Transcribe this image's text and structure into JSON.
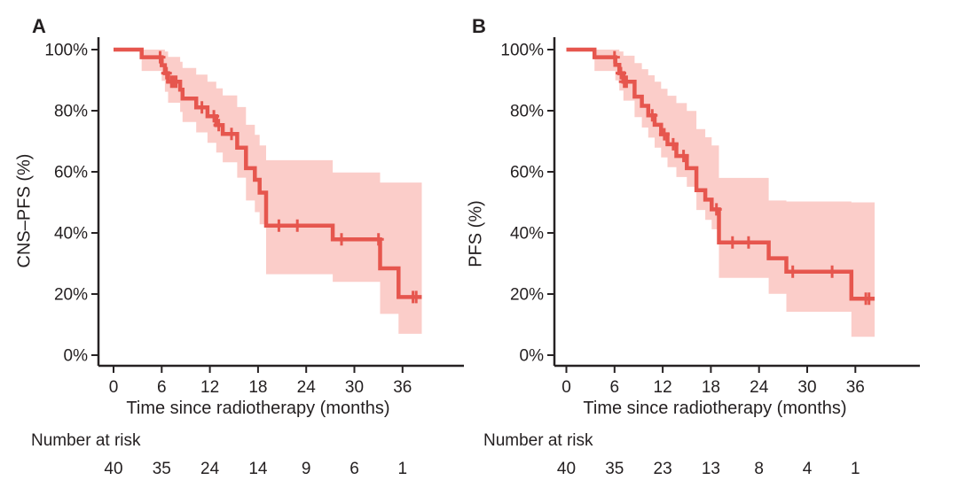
{
  "figure": {
    "background": "#ffffff",
    "curve_color": "#e6564e",
    "band_color": "#fbcdc9",
    "axis_color": "#262223",
    "text_color": "#231f20"
  },
  "chart_data": [
    {
      "type": "line",
      "subtype": "kaplan-meier-step",
      "panel": "A",
      "ylabel": "CNS–PFS (%)",
      "xlabel": "Time since radiotherapy (months)",
      "risk_label": "Number at risk",
      "xlim": [
        0,
        40
      ],
      "ylim": [
        0,
        100
      ],
      "grid": false,
      "legend": "none",
      "x_ticks": [
        0,
        6,
        12,
        18,
        24,
        30,
        36
      ],
      "y_tick_pcts": [
        0,
        20,
        40,
        60,
        80,
        100
      ],
      "y_tick_labels": [
        "0%",
        "20%",
        "40%",
        "60%",
        "80%",
        "100%"
      ],
      "steps": [
        [
          0,
          100
        ],
        [
          3.5,
          97.5
        ],
        [
          6.0,
          94.9
        ],
        [
          6.4,
          92.3
        ],
        [
          6.8,
          89.5
        ],
        [
          8.3,
          86.9
        ],
        [
          8.6,
          84.0
        ],
        [
          10.3,
          81.1
        ],
        [
          11.7,
          78.2
        ],
        [
          12.8,
          75.3
        ],
        [
          13.6,
          72.4
        ],
        [
          15.4,
          67.9
        ],
        [
          16.5,
          61.2
        ],
        [
          17.6,
          57.4
        ],
        [
          18.2,
          53.2
        ],
        [
          19.0,
          42.4
        ],
        [
          27.3,
          37.9
        ],
        [
          33.2,
          28.4
        ],
        [
          35.5,
          19.0
        ]
      ],
      "end_time": 38.4,
      "censors": [
        [
          5.8,
          97.5
        ],
        [
          6.6,
          92.3
        ],
        [
          7.2,
          89.5
        ],
        [
          7.5,
          89.5
        ],
        [
          7.8,
          89.5
        ],
        [
          11.0,
          81.1
        ],
        [
          12.5,
          78.2
        ],
        [
          13.1,
          75.3
        ],
        [
          14.7,
          72.4
        ],
        [
          20.6,
          42.4
        ],
        [
          22.9,
          42.4
        ],
        [
          28.4,
          37.9
        ],
        [
          33.0,
          37.9
        ],
        [
          37.3,
          19.0
        ],
        [
          37.7,
          19.0
        ]
      ],
      "band": [
        [
          0,
          100,
          100
        ],
        [
          3.5,
          100,
          93.0
        ],
        [
          6.0,
          100,
          89.8
        ],
        [
          6.4,
          99.4,
          86.2
        ],
        [
          6.8,
          97.6,
          82.6
        ],
        [
          8.3,
          96.0,
          79.6
        ],
        [
          8.6,
          94.0,
          76.3
        ],
        [
          10.3,
          91.8,
          72.9
        ],
        [
          11.7,
          89.5,
          69.5
        ],
        [
          12.8,
          87.3,
          66.3
        ],
        [
          13.6,
          85.0,
          63.1
        ],
        [
          15.4,
          81.2,
          58.1
        ],
        [
          16.5,
          75.4,
          50.6
        ],
        [
          17.6,
          72.1,
          46.8
        ],
        [
          18.2,
          68.6,
          42.8
        ],
        [
          19.0,
          63.8,
          26.5
        ],
        [
          27.3,
          59.8,
          24.0
        ],
        [
          33.2,
          56.5,
          13.5
        ],
        [
          35.5,
          56.5,
          7.0
        ]
      ],
      "number_at_risk": {
        "times": [
          0,
          6,
          12,
          18,
          24,
          30,
          36
        ],
        "counts": [
          40,
          35,
          24,
          14,
          9,
          6,
          1
        ]
      }
    },
    {
      "type": "line",
      "subtype": "kaplan-meier-step",
      "panel": "B",
      "ylabel": "PFS (%)",
      "xlabel": "Time since radiotherapy (months)",
      "risk_label": "Number at risk",
      "xlim": [
        0,
        40
      ],
      "ylim": [
        0,
        100
      ],
      "grid": false,
      "legend": "none",
      "x_ticks": [
        0,
        6,
        12,
        18,
        24,
        30,
        36
      ],
      "y_tick_pcts": [
        0,
        20,
        40,
        60,
        80,
        100
      ],
      "y_tick_labels": [
        "0%",
        "20%",
        "40%",
        "60%",
        "80%",
        "100%"
      ],
      "steps": [
        [
          0,
          100
        ],
        [
          3.5,
          97.5
        ],
        [
          6.1,
          95.0
        ],
        [
          6.6,
          92.3
        ],
        [
          7.1,
          89.5
        ],
        [
          8.5,
          84.6
        ],
        [
          9.4,
          81.6
        ],
        [
          10.2,
          78.5
        ],
        [
          11.0,
          75.4
        ],
        [
          11.8,
          72.3
        ],
        [
          12.6,
          69.0
        ],
        [
          13.7,
          65.2
        ],
        [
          15.0,
          61.2
        ],
        [
          16.2,
          54.0
        ],
        [
          17.3,
          50.9
        ],
        [
          18.1,
          47.7
        ],
        [
          19.0,
          36.9
        ],
        [
          25.2,
          31.7
        ],
        [
          27.4,
          27.3
        ],
        [
          35.5,
          18.5
        ]
      ],
      "end_time": 38.4,
      "censors": [
        [
          6.0,
          97.5
        ],
        [
          6.8,
          92.3
        ],
        [
          7.2,
          89.5
        ],
        [
          7.5,
          89.5
        ],
        [
          10.7,
          78.5
        ],
        [
          12.2,
          72.3
        ],
        [
          13.3,
          69.0
        ],
        [
          14.6,
          65.2
        ],
        [
          18.7,
          47.7
        ],
        [
          20.7,
          36.9
        ],
        [
          22.7,
          36.9
        ],
        [
          28.2,
          27.3
        ],
        [
          33.1,
          27.3
        ],
        [
          37.3,
          18.5
        ],
        [
          37.7,
          18.5
        ]
      ],
      "band": [
        [
          0,
          100,
          100
        ],
        [
          3.5,
          100,
          93.0
        ],
        [
          6.1,
          100,
          89.9
        ],
        [
          6.6,
          99.4,
          86.6
        ],
        [
          7.1,
          98.0,
          83.3
        ],
        [
          8.5,
          95.6,
          77.9
        ],
        [
          9.4,
          93.6,
          74.5
        ],
        [
          10.2,
          91.6,
          71.2
        ],
        [
          11.0,
          89.5,
          67.9
        ],
        [
          11.8,
          87.2,
          64.7
        ],
        [
          12.6,
          84.9,
          61.5
        ],
        [
          13.7,
          82.5,
          58.3
        ],
        [
          15.0,
          79.9,
          55.1
        ],
        [
          16.2,
          74.0,
          47.5
        ],
        [
          17.3,
          71.3,
          44.3
        ],
        [
          18.1,
          68.6,
          41.2
        ],
        [
          19.0,
          58.0,
          25.3
        ],
        [
          25.2,
          50.6,
          20.1
        ],
        [
          27.4,
          50.3,
          14.2
        ],
        [
          35.5,
          50.0,
          6.0
        ]
      ],
      "number_at_risk": {
        "times": [
          0,
          6,
          12,
          18,
          24,
          30,
          36
        ],
        "counts": [
          40,
          35,
          23,
          13,
          8,
          4,
          1
        ]
      }
    }
  ]
}
